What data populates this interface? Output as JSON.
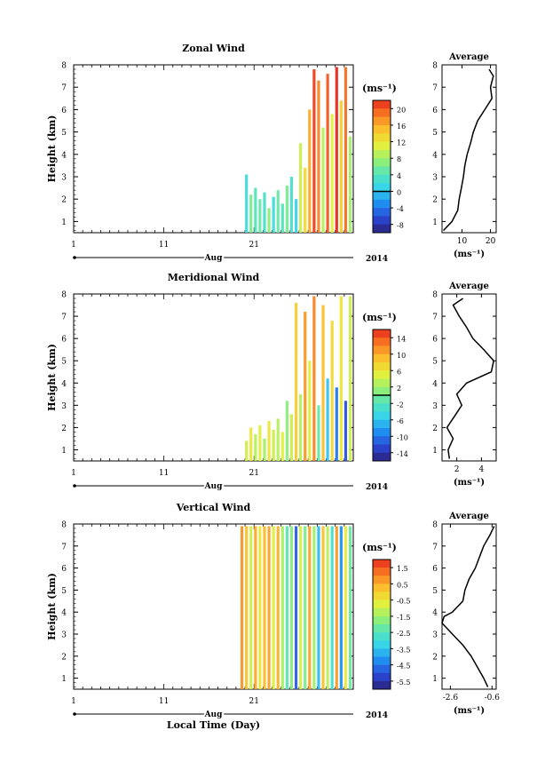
{
  "chart_data": [
    {
      "type": "heatmap",
      "title": "Zonal Wind",
      "ylabel": "Height (km)",
      "xlabel": "",
      "ylim": [
        0.5,
        8
      ],
      "xlim": [
        1,
        32
      ],
      "x_ticks": [
        "1",
        "11",
        "21"
      ],
      "y_ticks": [
        "1",
        "2",
        "3",
        "4",
        "5",
        "6",
        "7",
        "8"
      ],
      "time_axis": {
        "month": "Aug",
        "year": "2014"
      },
      "colorbar": {
        "unit": "(ms⁻¹)",
        "range": [
          -10,
          22
        ],
        "ticks": [
          "20",
          "16",
          "12",
          "8",
          "4",
          "0",
          "-4",
          "-8"
        ],
        "zero_line": 0
      },
      "data_columns": [
        {
          "day": 20.0,
          "top": 3.1,
          "value": 2
        },
        {
          "day": 20.5,
          "top": 2.2,
          "value": 6
        },
        {
          "day": 21.0,
          "top": 2.5,
          "value": 4
        },
        {
          "day": 21.5,
          "top": 2.0,
          "value": 5
        },
        {
          "day": 22.0,
          "top": 2.3,
          "value": 3
        },
        {
          "day": 22.5,
          "top": 1.6,
          "value": 7
        },
        {
          "day": 23.0,
          "top": 2.1,
          "value": 2
        },
        {
          "day": 23.5,
          "top": 2.4,
          "value": 5
        },
        {
          "day": 24.0,
          "top": 1.8,
          "value": 4
        },
        {
          "day": 24.5,
          "top": 2.6,
          "value": 6
        },
        {
          "day": 25.0,
          "top": 3.0,
          "value": 3
        },
        {
          "day": 25.5,
          "top": 2.0,
          "value": 1
        },
        {
          "day": 26.0,
          "top": 4.5,
          "value": 10
        },
        {
          "day": 26.5,
          "top": 3.4,
          "value": 13
        },
        {
          "day": 27.0,
          "top": 6.0,
          "value": 16
        },
        {
          "day": 27.5,
          "top": 7.8,
          "value": 21
        },
        {
          "day": 28.0,
          "top": 7.3,
          "value": 18
        },
        {
          "day": 28.5,
          "top": 5.2,
          "value": 9
        },
        {
          "day": 29.0,
          "top": 7.6,
          "value": 20
        },
        {
          "day": 29.5,
          "top": 5.8,
          "value": 11
        },
        {
          "day": 30.0,
          "top": 7.9,
          "value": 22
        },
        {
          "day": 30.5,
          "top": 6.4,
          "value": 14
        },
        {
          "day": 31.0,
          "top": 7.9,
          "value": 19
        },
        {
          "day": 31.5,
          "top": 4.8,
          "value": 8
        }
      ],
      "average_profile": {
        "title": "Average",
        "xlabel": "(ms⁻¹)",
        "x_ticks": [
          "10",
          "20"
        ],
        "xlim": [
          3,
          22
        ],
        "y_ticks": [
          "1",
          "2",
          "3",
          "4",
          "5",
          "6",
          "7",
          "8"
        ],
        "heights": [
          0.6,
          1.0,
          1.5,
          2.0,
          2.5,
          3.0,
          3.5,
          4.0,
          4.5,
          5.0,
          5.5,
          6.0,
          6.5,
          7.0,
          7.5,
          7.8
        ],
        "values": [
          3.5,
          6.5,
          8.5,
          9.0,
          9.8,
          10.5,
          11.0,
          11.8,
          13.0,
          14.0,
          15.5,
          18.0,
          20.5,
          20.0,
          21.0,
          19.5
        ]
      }
    },
    {
      "type": "heatmap",
      "title": "Meridional Wind",
      "ylabel": "Height (km)",
      "xlabel": "",
      "ylim": [
        0.5,
        8
      ],
      "xlim": [
        1,
        32
      ],
      "x_ticks": [
        "1",
        "11",
        "21"
      ],
      "y_ticks": [
        "1",
        "2",
        "3",
        "4",
        "5",
        "6",
        "7",
        "8"
      ],
      "time_axis": {
        "month": "Aug",
        "year": "2014"
      },
      "colorbar": {
        "unit": "(ms⁻¹)",
        "range": [
          -16,
          16
        ],
        "ticks": [
          "14",
          "10",
          "6",
          "2",
          "-2",
          "-6",
          "-10",
          "-14"
        ],
        "zero_line": 0
      },
      "data_columns": [
        {
          "day": 20.0,
          "top": 1.4,
          "value": 4
        },
        {
          "day": 20.5,
          "top": 2.0,
          "value": 6
        },
        {
          "day": 21.0,
          "top": 1.7,
          "value": 3
        },
        {
          "day": 21.5,
          "top": 2.1,
          "value": 5
        },
        {
          "day": 22.0,
          "top": 1.5,
          "value": 2
        },
        {
          "day": 22.5,
          "top": 2.3,
          "value": 6
        },
        {
          "day": 23.0,
          "top": 1.9,
          "value": 4
        },
        {
          "day": 23.5,
          "top": 2.4,
          "value": 3
        },
        {
          "day": 24.0,
          "top": 1.8,
          "value": 5
        },
        {
          "day": 24.5,
          "top": 3.2,
          "value": 1
        },
        {
          "day": 25.0,
          "top": 2.6,
          "value": 4
        },
        {
          "day": 25.5,
          "top": 7.6,
          "value": 8
        },
        {
          "day": 26.0,
          "top": 3.5,
          "value": 3
        },
        {
          "day": 26.5,
          "top": 7.2,
          "value": 11
        },
        {
          "day": 27.0,
          "top": 5.0,
          "value": 5
        },
        {
          "day": 27.5,
          "top": 7.9,
          "value": 12
        },
        {
          "day": 28.0,
          "top": 3.0,
          "value": -1
        },
        {
          "day": 28.5,
          "top": 7.5,
          "value": 9
        },
        {
          "day": 29.0,
          "top": 4.2,
          "value": -6
        },
        {
          "day": 29.5,
          "top": 6.8,
          "value": 7
        },
        {
          "day": 30.0,
          "top": 3.8,
          "value": -10
        },
        {
          "day": 30.5,
          "top": 7.9,
          "value": 6
        },
        {
          "day": 31.0,
          "top": 3.2,
          "value": -12
        },
        {
          "day": 31.5,
          "top": 7.9,
          "value": 4
        }
      ],
      "average_profile": {
        "title": "Average",
        "xlabel": "(ms⁻¹)",
        "x_ticks": [
          "2",
          "4"
        ],
        "xlim": [
          0.8,
          5.2
        ],
        "y_ticks": [
          "1",
          "2",
          "3",
          "4",
          "5",
          "6",
          "7",
          "8"
        ],
        "heights": [
          0.6,
          1.0,
          1.5,
          2.0,
          2.5,
          3.0,
          3.5,
          4.0,
          4.5,
          5.0,
          5.5,
          6.0,
          6.5,
          7.0,
          7.5,
          7.8
        ],
        "values": [
          1.4,
          1.3,
          1.7,
          1.2,
          1.8,
          2.4,
          2.0,
          2.8,
          4.8,
          5.0,
          4.2,
          3.3,
          2.8,
          2.2,
          1.7,
          2.5
        ]
      }
    },
    {
      "type": "heatmap",
      "title": "Vertical Wind",
      "ylabel": "Height (km)",
      "xlabel": "Local Time (Day)",
      "ylim": [
        0.5,
        8
      ],
      "xlim": [
        1,
        32
      ],
      "x_ticks": [
        "1",
        "11",
        "21"
      ],
      "y_ticks": [
        "1",
        "2",
        "3",
        "4",
        "5",
        "6",
        "7",
        "8"
      ],
      "time_axis": {
        "month": "Aug",
        "year": "2014"
      },
      "colorbar": {
        "unit": "(ms⁻¹)",
        "range": [
          -6,
          2
        ],
        "ticks": [
          "1.5",
          "0.5",
          "-0.5",
          "-1.5",
          "-2.5",
          "-3.5",
          "-4.5",
          "-5.5"
        ],
        "zero_line": null
      },
      "data_columns": [
        {
          "day": 19.5,
          "top": 7.9,
          "value": 0.8
        },
        {
          "day": 20.0,
          "top": 7.9,
          "value": 0.2
        },
        {
          "day": 20.5,
          "top": 7.9,
          "value": -1.0
        },
        {
          "day": 21.0,
          "top": 7.9,
          "value": 0.5
        },
        {
          "day": 21.5,
          "top": 7.9,
          "value": -0.5
        },
        {
          "day": 22.0,
          "top": 7.9,
          "value": 0.3
        },
        {
          "day": 22.5,
          "top": 7.9,
          "value": 0.6
        },
        {
          "day": 23.0,
          "top": 7.9,
          "value": -0.8
        },
        {
          "day": 23.5,
          "top": 7.9,
          "value": 0.4
        },
        {
          "day": 24.0,
          "top": 7.9,
          "value": -1.4
        },
        {
          "day": 24.5,
          "top": 7.9,
          "value": -2.4
        },
        {
          "day": 25.0,
          "top": 7.9,
          "value": -1.8
        },
        {
          "day": 25.5,
          "top": 7.9,
          "value": -4.8
        },
        {
          "day": 26.0,
          "top": 7.9,
          "value": -0.9
        },
        {
          "day": 26.5,
          "top": 7.9,
          "value": -2.0
        },
        {
          "day": 27.0,
          "top": 7.9,
          "value": 0.6
        },
        {
          "day": 27.5,
          "top": 7.9,
          "value": -1.5
        },
        {
          "day": 28.0,
          "top": 7.9,
          "value": -3.6
        },
        {
          "day": 28.5,
          "top": 7.9,
          "value": 0.2
        },
        {
          "day": 29.0,
          "top": 7.9,
          "value": -1.2
        },
        {
          "day": 29.5,
          "top": 7.9,
          "value": -2.8
        },
        {
          "day": 30.0,
          "top": 7.9,
          "value": 0.7
        },
        {
          "day": 30.5,
          "top": 7.9,
          "value": -4.2
        },
        {
          "day": 31.0,
          "top": 7.9,
          "value": -0.6
        },
        {
          "day": 31.5,
          "top": 7.9,
          "value": -2.2
        }
      ],
      "average_profile": {
        "title": "Average",
        "xlabel": "(ms⁻¹)",
        "x_ticks": [
          "-2.6",
          "-0.6"
        ],
        "xlim": [
          -3.0,
          -0.4
        ],
        "y_ticks": [
          "1",
          "2",
          "3",
          "4",
          "5",
          "6",
          "7",
          "8"
        ],
        "heights": [
          0.6,
          1.0,
          1.5,
          2.0,
          2.5,
          3.0,
          3.5,
          3.8,
          4.0,
          4.5,
          5.0,
          5.5,
          6.0,
          6.5,
          7.0,
          7.5,
          7.9
        ],
        "values": [
          -0.8,
          -1.0,
          -1.3,
          -1.6,
          -2.0,
          -2.5,
          -3.0,
          -2.9,
          -2.5,
          -2.0,
          -1.9,
          -1.7,
          -1.4,
          -1.2,
          -1.0,
          -0.7,
          -0.5
        ]
      }
    }
  ]
}
